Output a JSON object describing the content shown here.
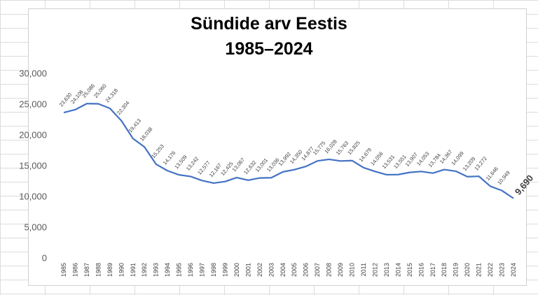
{
  "chart_data": {
    "type": "line",
    "title_line1": "Sündide arv Eestis",
    "title_line2": "1985–2024",
    "xlabel": "",
    "ylabel": "",
    "ylim": [
      0,
      30000
    ],
    "yticks": [
      0,
      5000,
      10000,
      15000,
      20000,
      25000,
      30000
    ],
    "ytick_labels": [
      "0",
      "5,000",
      "10,000",
      "15,000",
      "20,000",
      "25,000",
      "30,000"
    ],
    "grid": false,
    "legend": "none",
    "line_color": "#4472c4",
    "x": [
      "1985",
      "1986",
      "1987",
      "1988",
      "1989",
      "1990",
      "1991",
      "1992",
      "1993",
      "1994",
      "1995",
      "1996",
      "1997",
      "1998",
      "1999",
      "2000",
      "2001",
      "2002",
      "2003",
      "2004",
      "2005",
      "2006",
      "2007",
      "2008",
      "2009",
      "2010",
      "2011",
      "2012",
      "2013",
      "2014",
      "2015",
      "2016",
      "2017",
      "2018",
      "2019",
      "2020",
      "2021",
      "2022",
      "2023",
      "2024"
    ],
    "values": [
      23630,
      24106,
      25086,
      25060,
      24318,
      22304,
      19413,
      18038,
      15253,
      14176,
      13509,
      13242,
      12577,
      12167,
      12425,
      13067,
      12632,
      13001,
      13036,
      13992,
      14350,
      14877,
      15775,
      16028,
      15763,
      15825,
      14679,
      14056,
      13531,
      13551,
      13907,
      14053,
      13784,
      14367,
      14099,
      13209,
      13272,
      11646,
      10949,
      9690
    ],
    "data_labels": [
      "23,630",
      "24,106",
      "25,086",
      "25,060",
      "24,318",
      "22,304",
      "19,413",
      "18,038",
      "15,253",
      "14,176",
      "13,509",
      "13,242",
      "12,577",
      "12,167",
      "12,425",
      "13,067",
      "12,632",
      "13,001",
      "13,036",
      "13,992",
      "14,350",
      "14,877",
      "15,775",
      "16,028",
      "15,763",
      "15,825",
      "14,679",
      "14,056",
      "13,531",
      "13,551",
      "13,907",
      "14,053",
      "13,784",
      "14,367",
      "14,099",
      "13,209",
      "13,272",
      "11,646",
      "10,949",
      "9,690"
    ]
  }
}
